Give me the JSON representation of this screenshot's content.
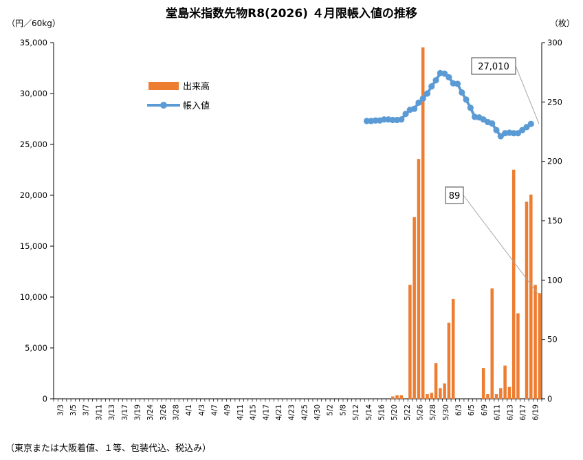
{
  "chart_data": {
    "type": "bar+line",
    "title": "堂島米指数先物R8(2026) ４月限帳入値の推移",
    "left_unit": "（円／60kg）",
    "right_unit": "（枚）",
    "note": "（東京または大阪着値、１等、包装代込、税込み）",
    "left_axis": {
      "min": 0,
      "max": 35000,
      "ticks": [
        "0",
        "5,000",
        "10,000",
        "15,000",
        "20,000",
        "25,000",
        "30,000",
        "35,000"
      ]
    },
    "right_axis": {
      "min": 0,
      "max": 300,
      "ticks": [
        "0",
        "50",
        "100",
        "150",
        "200",
        "250",
        "300"
      ]
    },
    "x_labels": [
      "3/3",
      "3/5",
      "3/7",
      "3/11",
      "3/13",
      "3/17",
      "3/19",
      "3/24",
      "3/26",
      "3/28",
      "4/1",
      "4/3",
      "4/7",
      "4/9",
      "4/11",
      "4/15",
      "4/17",
      "4/21",
      "4/23",
      "4/25",
      "4/30",
      "5/2",
      "5/8",
      "5/12",
      "5/14",
      "5/16",
      "5/20",
      "5/22",
      "5/26",
      "5/28",
      "5/30",
      "6/3",
      "6/5",
      "6/9",
      "6/11",
      "6/13",
      "6/17",
      "6/19"
    ],
    "legend": [
      "出来高",
      "帳入値"
    ],
    "colors": {
      "bar": "#ED7D31",
      "line": "#5B9BD5",
      "axis": "#000000",
      "callout_leader": "#A6A6A6"
    },
    "bar_series": {
      "name": "出来高",
      "axis": "right",
      "values": [
        0,
        0,
        0,
        0,
        0,
        0,
        0,
        0,
        0,
        0,
        0,
        0,
        0,
        0,
        0,
        0,
        0,
        0,
        0,
        0,
        0,
        0,
        0,
        0,
        0,
        0,
        0,
        0,
        0,
        0,
        0,
        0,
        0,
        0,
        0,
        0,
        0,
        0,
        0,
        0,
        0,
        0,
        0,
        0,
        0,
        0,
        0,
        0,
        0,
        0,
        0,
        0,
        0,
        0,
        0,
        0,
        0,
        0,
        0,
        0,
        0,
        0,
        0,
        0,
        0,
        0,
        0,
        0,
        0,
        0,
        0,
        0,
        0,
        0,
        0,
        0,
        0,
        0,
        2,
        3,
        3,
        0,
        96,
        153,
        202,
        296,
        4,
        5,
        30,
        9,
        13,
        64,
        84,
        0,
        0,
        0,
        0,
        0,
        0,
        26,
        4,
        93,
        4,
        9,
        28,
        10,
        193,
        72,
        0,
        166,
        172,
        96,
        89
      ]
    },
    "line_series": {
      "name": "帳入値",
      "axis": "left",
      "start_index": 72,
      "values": [
        27300,
        27300,
        27350,
        27350,
        27450,
        27450,
        27400,
        27400,
        27450,
        28000,
        28400,
        28500,
        29100,
        29500,
        30000,
        30700,
        31300,
        32000,
        31950,
        31600,
        31000,
        30950,
        30100,
        29400,
        28600,
        27700,
        27650,
        27450,
        27200,
        27050,
        26400,
        25800,
        26100,
        26150,
        26100,
        26100,
        26400,
        26700,
        27010
      ]
    },
    "callouts": {
      "last_price": "27,010",
      "last_volume": "89"
    }
  }
}
